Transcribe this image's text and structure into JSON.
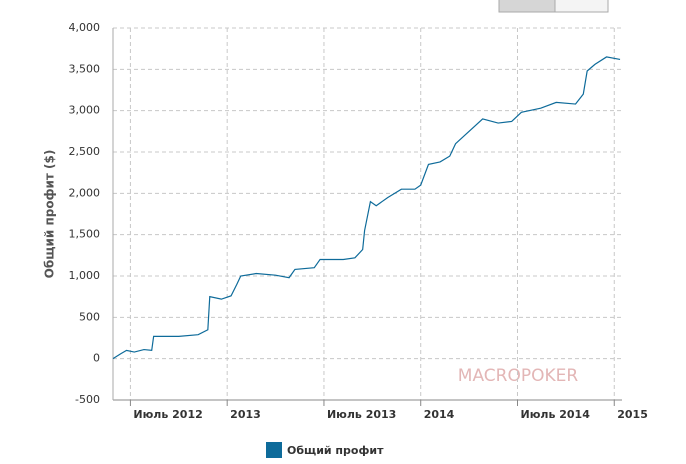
{
  "chart_data": {
    "type": "line",
    "y_label": "Общий профит ($)",
    "watermark": "MACROPOKER",
    "xlim": [
      2012.41,
      2015.04
    ],
    "xticks": [
      {
        "value": 2012.5,
        "label": "Июль 2012"
      },
      {
        "value": 2013,
        "label": "2013"
      },
      {
        "value": 2013.5,
        "label": "Июль 2013"
      },
      {
        "value": 2014,
        "label": "2014"
      },
      {
        "value": 2014.5,
        "label": "Июль 2014"
      },
      {
        "value": 2015,
        "label": "2015"
      }
    ],
    "ylim": [
      -500,
      4000
    ],
    "yticks": [
      -500,
      0,
      500,
      {
        "value": 1000,
        "label": "1,000"
      },
      {
        "value": 1500,
        "label": "1,500"
      },
      {
        "value": 2000,
        "label": "2,000"
      },
      {
        "value": 2500,
        "label": "2,500"
      },
      {
        "value": 3000,
        "label": "3,000"
      },
      {
        "value": 3500,
        "label": "3,500"
      },
      {
        "value": 4000,
        "label": "4,000"
      }
    ],
    "grid": true,
    "x": [
      2012.41,
      2012.45,
      2012.48,
      2012.52,
      2012.57,
      2012.61,
      2012.62,
      2012.75,
      2012.85,
      2012.9,
      2012.91,
      2012.97,
      2013.02,
      2013.05,
      2013.07,
      2013.15,
      2013.25,
      2013.32,
      2013.35,
      2013.45,
      2013.48,
      2013.6,
      2013.66,
      2013.7,
      2013.71,
      2013.74,
      2013.77,
      2013.83,
      2013.9,
      2013.97,
      2014.0,
      2014.04,
      2014.1,
      2014.15,
      2014.18,
      2014.25,
      2014.32,
      2014.4,
      2014.47,
      2014.52,
      2014.62,
      2014.7,
      2014.8,
      2014.84,
      2014.86,
      2014.9,
      2014.96,
      2015.03
    ],
    "series": [
      {
        "name": "Общий профит",
        "color": "#0e6b9a",
        "values": [
          0,
          60,
          100,
          80,
          110,
          100,
          270,
          270,
          290,
          350,
          750,
          720,
          760,
          900,
          1000,
          1030,
          1010,
          980,
          1080,
          1100,
          1200,
          1200,
          1220,
          1320,
          1550,
          1900,
          1850,
          1950,
          2050,
          2050,
          2100,
          2350,
          2380,
          2450,
          2600,
          2750,
          2900,
          2850,
          2870,
          2980,
          3030,
          3100,
          3080,
          3200,
          3480,
          3560,
          3650,
          3620
        ]
      }
    ]
  }
}
